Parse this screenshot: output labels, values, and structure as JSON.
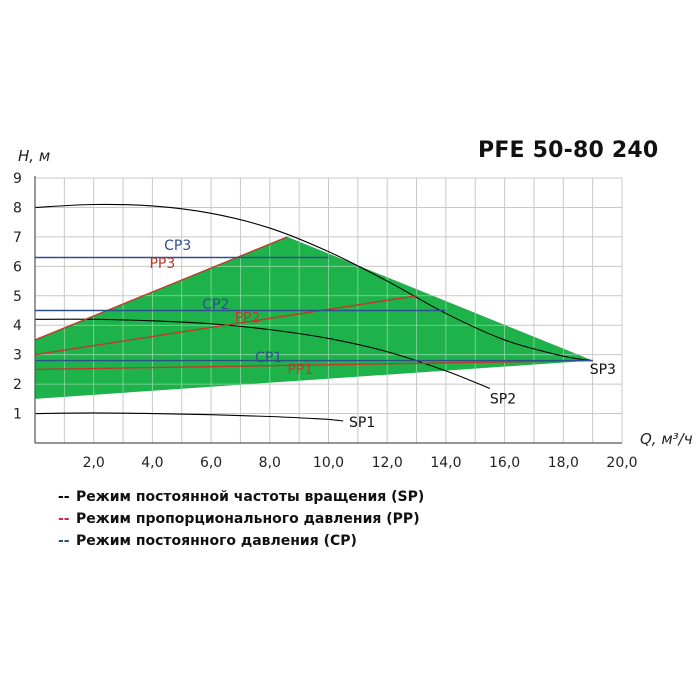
{
  "chart_data": {
    "type": "line",
    "title": "PFE 50-80 240",
    "xlabel": "Q, м³/ч",
    "ylabel": "H, м",
    "xlim": [
      0,
      20
    ],
    "ylim": [
      0,
      9
    ],
    "grid": true,
    "x_ticks": [
      "2,0",
      "4,0",
      "6,0",
      "8,0",
      "10,0",
      "12,0",
      "14,0",
      "16,0",
      "18,0",
      "20,0"
    ],
    "y_ticks": [
      "1",
      "2",
      "3",
      "4",
      "5",
      "6",
      "7",
      "8",
      "9"
    ],
    "region": {
      "color": "#1db34a",
      "points": [
        [
          0,
          1.5
        ],
        [
          0,
          3.5
        ],
        [
          8.6,
          7.0
        ],
        [
          19.0,
          2.8
        ]
      ]
    },
    "series": [
      {
        "name": "SP1",
        "group": "SP",
        "color": "#000000",
        "points": [
          [
            0,
            1.0
          ],
          [
            2,
            1.02
          ],
          [
            4,
            1.0
          ],
          [
            6,
            0.96
          ],
          [
            8,
            0.9
          ],
          [
            9.5,
            0.83
          ],
          [
            10.0,
            0.8
          ],
          [
            10.5,
            0.75
          ]
        ]
      },
      {
        "name": "SP2",
        "group": "SP",
        "color": "#000000",
        "points": [
          [
            0,
            4.2
          ],
          [
            2,
            4.2
          ],
          [
            4,
            4.15
          ],
          [
            6,
            4.05
          ],
          [
            8,
            3.85
          ],
          [
            10,
            3.55
          ],
          [
            12,
            3.1
          ],
          [
            14,
            2.45
          ],
          [
            15.5,
            1.85
          ]
        ]
      },
      {
        "name": "SP3",
        "group": "SP",
        "color": "#000000",
        "points": [
          [
            0,
            8.0
          ],
          [
            2,
            8.1
          ],
          [
            4,
            8.05
          ],
          [
            6,
            7.8
          ],
          [
            8,
            7.3
          ],
          [
            10,
            6.5
          ],
          [
            12,
            5.5
          ],
          [
            14,
            4.4
          ],
          [
            16,
            3.5
          ],
          [
            18,
            2.95
          ],
          [
            19,
            2.8
          ]
        ]
      },
      {
        "name": "PP1",
        "group": "PP",
        "color": "#c0392b",
        "points": [
          [
            0,
            2.5
          ],
          [
            19,
            2.8
          ]
        ]
      },
      {
        "name": "PP2",
        "group": "PP",
        "color": "#c0392b",
        "points": [
          [
            0,
            3.0
          ],
          [
            13,
            5.0
          ]
        ]
      },
      {
        "name": "PP3",
        "group": "PP",
        "color": "#c0392b",
        "points": [
          [
            0,
            3.5
          ],
          [
            8.6,
            7.0
          ]
        ]
      },
      {
        "name": "CP1",
        "group": "CP",
        "color": "#2e4f8f",
        "points": [
          [
            0,
            2.8
          ],
          [
            19,
            2.8
          ]
        ]
      },
      {
        "name": "CP2",
        "group": "CP",
        "color": "#2e4f8f",
        "points": [
          [
            0,
            4.5
          ],
          [
            14,
            4.5
          ]
        ]
      },
      {
        "name": "CP3",
        "group": "CP",
        "color": "#2e4f8f",
        "points": [
          [
            0,
            6.3
          ],
          [
            10,
            6.3
          ]
        ]
      }
    ],
    "curve_labels": [
      {
        "text": "SP1",
        "x": 10.7,
        "y": 0.55,
        "color": "#111111"
      },
      {
        "text": "SP2",
        "x": 15.5,
        "y": 1.35,
        "color": "#111111"
      },
      {
        "text": "SP3",
        "x": 18.9,
        "y": 2.35,
        "color": "#111111"
      },
      {
        "text": "PP1",
        "x": 8.6,
        "y": 2.35,
        "color": "#c0392b"
      },
      {
        "text": "PP2",
        "x": 6.8,
        "y": 4.1,
        "color": "#c0392b"
      },
      {
        "text": "PP3",
        "x": 3.9,
        "y": 5.95,
        "color": "#c0392b"
      },
      {
        "text": "CP1",
        "x": 7.5,
        "y": 2.75,
        "color": "#2e4f8f"
      },
      {
        "text": "CP2",
        "x": 5.7,
        "y": 4.55,
        "color": "#2e4f8f"
      },
      {
        "text": "CP3",
        "x": 4.4,
        "y": 6.55,
        "color": "#2e4f8f"
      }
    ],
    "legend": {
      "placement": "bottom-left",
      "items": [
        {
          "dash": "--",
          "color": "#000000",
          "label": "Режим постоянной частоты вращения (SP)"
        },
        {
          "dash": "--",
          "color": "#c0392b",
          "label": "Режим пропорционального давления (PP)"
        },
        {
          "dash": "--",
          "color": "#2e4f8f",
          "label": "Режим постоянного давления (CP)"
        }
      ]
    }
  }
}
